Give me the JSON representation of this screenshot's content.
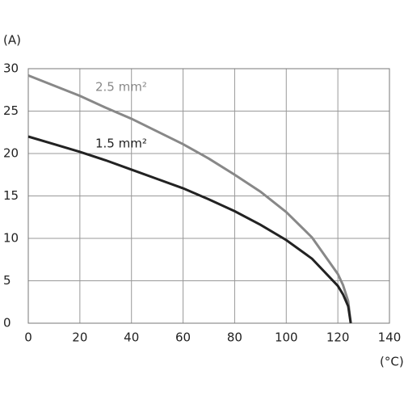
{
  "chart_data": {
    "type": "line",
    "y_label": "(A)",
    "x_label": "(°C)",
    "x": [
      0,
      10,
      20,
      30,
      40,
      50,
      60,
      70,
      80,
      90,
      100,
      110,
      120,
      122,
      124,
      125
    ],
    "series": [
      {
        "name": "2.5 mm²",
        "color": "#888888",
        "values": [
          29.2,
          28.0,
          26.8,
          25.4,
          24.1,
          22.6,
          21.1,
          19.4,
          17.5,
          15.5,
          13.1,
          10.1,
          5.8,
          4.5,
          2.6,
          0
        ]
      },
      {
        "name": "1.5 mm²",
        "color": "#222222",
        "values": [
          22,
          21.1,
          20.2,
          19.2,
          18.1,
          17.0,
          15.9,
          14.6,
          13.2,
          11.6,
          9.8,
          7.6,
          4.4,
          3.4,
          2.0,
          0
        ]
      }
    ],
    "xlim": [
      0,
      140
    ],
    "xticks": [
      0,
      20,
      40,
      60,
      80,
      100,
      120,
      140
    ],
    "ylim": [
      0,
      30
    ],
    "yticks": [
      0,
      5,
      10,
      15,
      20,
      25,
      30
    ],
    "grid": true
  }
}
